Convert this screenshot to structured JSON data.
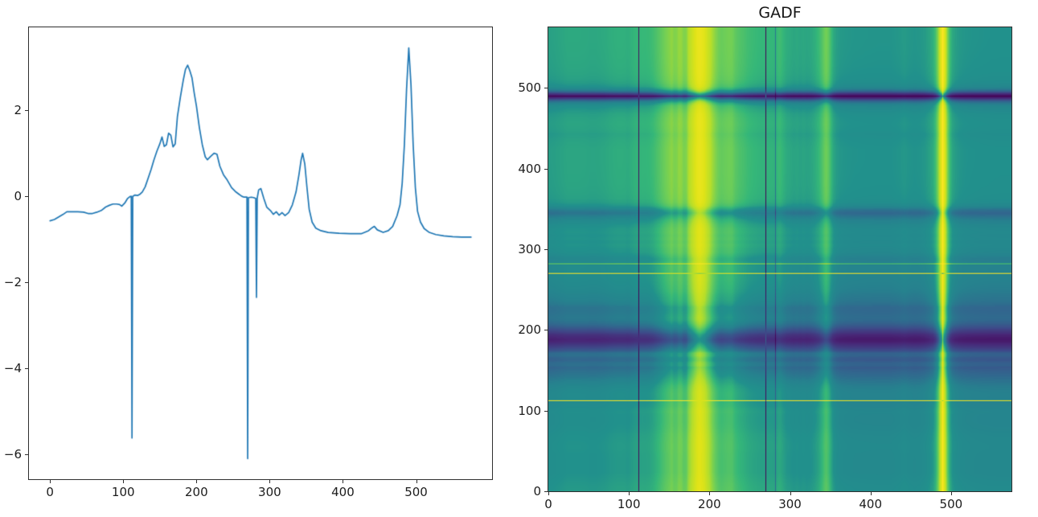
{
  "figure": {
    "background": "#ffffff"
  },
  "line_plot": {
    "xlim": [
      -28.75,
      603.75
    ],
    "ylim": [
      -6.58,
      3.93
    ],
    "xticks": {
      "values": [
        0,
        100,
        200,
        300,
        400,
        500
      ],
      "labels": [
        "0",
        "100",
        "200",
        "300",
        "400",
        "500"
      ]
    },
    "yticks": {
      "values": [
        2,
        0,
        -2,
        -4,
        -6
      ],
      "labels": [
        "2",
        "0",
        "−2",
        "−4",
        "−6"
      ]
    },
    "line_color": "#1f77b4",
    "spine_color": "#2e2e2e",
    "tick_label_color": "#1c1c1c"
  },
  "gadf_plot": {
    "title": "GADF",
    "xlim": [
      0,
      575
    ],
    "ylim": [
      0,
      575
    ],
    "xticks": {
      "values": [
        0,
        100,
        200,
        300,
        400,
        500
      ],
      "labels": [
        "0",
        "100",
        "200",
        "300",
        "400",
        "500"
      ]
    },
    "yticks": {
      "values": [
        0,
        100,
        200,
        300,
        400,
        500
      ],
      "labels": [
        "0",
        "100",
        "200",
        "300",
        "400",
        "500"
      ]
    },
    "colormap": "viridis",
    "colormap_stops": [
      "#440154",
      "#482878",
      "#3e4a89",
      "#31688e",
      "#26828e",
      "#21918c",
      "#35b779",
      "#6ece58",
      "#b5de2b",
      "#dfe318",
      "#fde725"
    ]
  },
  "chart_data": [
    {
      "type": "line",
      "title": "",
      "xlabel": "",
      "ylabel": "",
      "legend": null,
      "grid": false,
      "xlim": [
        -28.75,
        603.75
      ],
      "ylim": [
        -6.58,
        3.93
      ],
      "line_color": "#1f77b4",
      "sampling": "piecewise-linear control points read from the plot",
      "x": [
        0,
        6,
        12,
        18,
        23,
        30,
        38,
        46,
        52,
        58,
        64,
        70,
        76,
        81,
        86,
        91,
        95,
        98,
        102,
        106,
        109,
        111,
        112,
        113,
        116,
        120,
        123,
        126,
        130,
        134,
        138,
        142,
        146,
        150,
        153,
        156,
        159,
        162,
        165,
        168,
        171,
        174,
        178,
        182,
        185,
        188,
        191,
        194,
        197,
        200,
        204,
        208,
        212,
        215,
        219,
        224,
        228,
        232,
        237,
        242,
        248,
        254,
        258,
        262,
        265,
        269,
        270,
        271,
        275,
        278,
        281,
        282,
        283,
        285,
        288,
        292,
        296,
        301,
        305,
        309,
        313,
        317,
        321,
        326,
        331,
        336,
        340,
        343,
        345,
        348,
        351,
        354,
        358,
        363,
        370,
        380,
        395,
        410,
        425,
        435,
        440,
        443,
        447,
        455,
        462,
        468,
        474,
        478,
        481,
        484,
        487,
        490,
        493,
        496,
        499,
        502,
        506,
        511,
        518,
        527,
        538,
        550,
        562,
        575
      ],
      "y": [
        -0.57,
        -0.54,
        -0.48,
        -0.42,
        -0.36,
        -0.36,
        -0.36,
        -0.37,
        -0.4,
        -0.4,
        -0.37,
        -0.33,
        -0.25,
        -0.21,
        -0.18,
        -0.18,
        -0.19,
        -0.23,
        -0.16,
        -0.05,
        -0.01,
        0.0,
        -5.62,
        0.0,
        0.03,
        0.02,
        0.05,
        0.1,
        0.22,
        0.42,
        0.62,
        0.85,
        1.05,
        1.22,
        1.38,
        1.16,
        1.2,
        1.47,
        1.42,
        1.15,
        1.22,
        1.85,
        2.3,
        2.7,
        2.95,
        3.05,
        2.92,
        2.75,
        2.4,
        2.1,
        1.6,
        1.2,
        0.92,
        0.85,
        0.92,
        1.0,
        0.98,
        0.7,
        0.5,
        0.38,
        0.2,
        0.1,
        0.05,
        0.0,
        -0.02,
        -0.02,
        -6.1,
        -0.03,
        -0.02,
        -0.03,
        -0.05,
        -2.35,
        -0.04,
        0.15,
        0.18,
        -0.05,
        -0.25,
        -0.33,
        -0.42,
        -0.36,
        -0.44,
        -0.38,
        -0.45,
        -0.38,
        -0.2,
        0.1,
        0.5,
        0.85,
        1.0,
        0.75,
        0.2,
        -0.3,
        -0.6,
        -0.74,
        -0.8,
        -0.84,
        -0.86,
        -0.87,
        -0.87,
        -0.8,
        -0.73,
        -0.7,
        -0.78,
        -0.84,
        -0.8,
        -0.7,
        -0.45,
        -0.2,
        0.3,
        1.2,
        2.5,
        3.45,
        2.6,
        1.2,
        0.2,
        -0.35,
        -0.6,
        -0.75,
        -0.84,
        -0.89,
        -0.92,
        -0.94,
        -0.95,
        -0.95
      ]
    },
    {
      "type": "heatmap",
      "title": "GADF",
      "xlabel": "",
      "ylabel": "",
      "xlim": [
        0,
        575
      ],
      "ylim": [
        0,
        575
      ],
      "colormap": "viridis",
      "value_range": [
        -1,
        1
      ],
      "origin": "lower",
      "description": "Gramian Angular Difference Field of the series in the left panel: G[i,j] = sin(phi_i - phi_j) with phi = arccos of the min-max scaled series; computed from chart_data[0]."
    }
  ]
}
